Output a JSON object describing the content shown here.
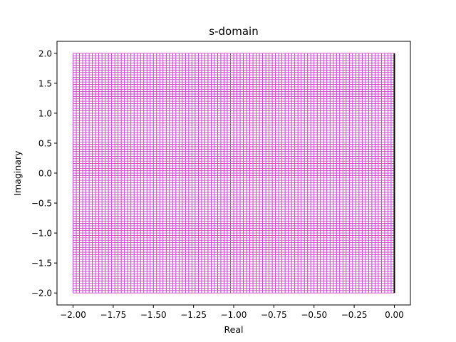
{
  "chart_data": {
    "type": "line",
    "title": "s-domain",
    "xlabel": "Real",
    "ylabel": "Imaginary",
    "xlim": [
      -2.1,
      0.1
    ],
    "ylim": [
      -2.2,
      2.2
    ],
    "x_ticks": [
      -2.0,
      -1.75,
      -1.5,
      -1.25,
      -1.0,
      -0.75,
      -0.5,
      -0.25,
      0.0
    ],
    "x_tick_labels": [
      "−2.00",
      "−1.75",
      "−1.50",
      "−1.25",
      "−1.00",
      "−0.75",
      "−0.50",
      "−0.25",
      "0.00"
    ],
    "y_ticks": [
      2.0,
      1.5,
      1.0,
      0.5,
      0.0,
      -0.5,
      -1.0,
      -1.5,
      -2.0
    ],
    "y_tick_labels": [
      "2.0",
      "1.5",
      "1.0",
      "0.5",
      "0.0",
      "−0.5",
      "−1.0",
      "−1.5",
      "−2.0"
    ],
    "grid": false,
    "legend": "none",
    "series": [
      {
        "description": "vertical lines of constant real part",
        "x_range": [
          -2.0,
          0.0
        ],
        "y_range": [
          -2.0,
          2.0
        ],
        "step": 0.02,
        "color": "#9e42e6"
      },
      {
        "description": "horizontal lines of constant imaginary part",
        "x_range": [
          -2.0,
          0.0
        ],
        "y_range": [
          -2.0,
          2.0
        ],
        "step": 0.04,
        "color": "#d43cc4"
      },
      {
        "description": "imaginary axis boundary at real = 0",
        "x": [
          0.0,
          0.0
        ],
        "y": [
          -2.0,
          2.0
        ],
        "color": "#000000"
      }
    ]
  }
}
